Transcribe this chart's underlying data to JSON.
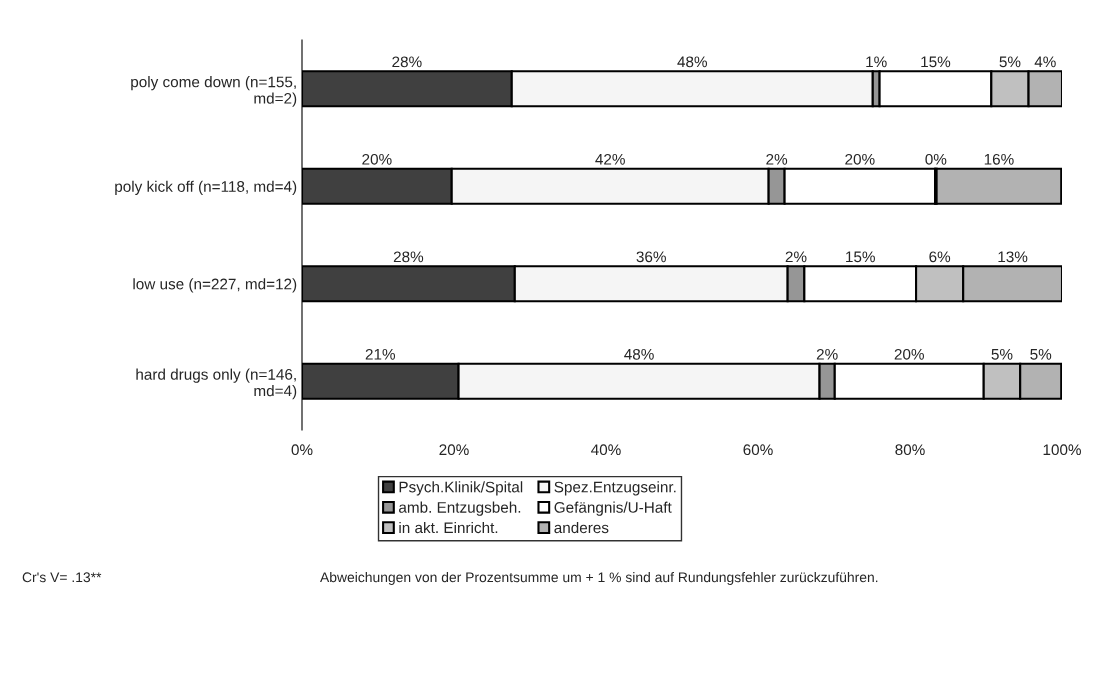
{
  "chart_data": {
    "type": "bar",
    "orientation": "horizontal",
    "stacked": true,
    "categories": [
      "poly come down (n=155,\nmd=2)",
      "poly kick off (n=118, md=4)",
      "low use (n=227, md=12)",
      "hard drugs only (n=146,\nmd=4)"
    ],
    "series": [
      {
        "name": "Psych.Klinik/Spital",
        "color": "#404040",
        "values": [
          27.6,
          19.7,
          28.0,
          20.6
        ],
        "value_labels": [
          "28%",
          "20%",
          "28%",
          "21%"
        ]
      },
      {
        "name": "Spez.Entzugseinr.",
        "color": "#f5f5f5",
        "values": [
          47.5,
          41.7,
          35.9,
          47.5
        ],
        "value_labels": [
          "48%",
          "42%",
          "36%",
          "48%"
        ]
      },
      {
        "name": "amb. Entzugsbeh.",
        "color": "#969696",
        "values": [
          0.9,
          2.1,
          2.2,
          2.0
        ],
        "value_labels": [
          "1%",
          "2%",
          "2%",
          "2%"
        ]
      },
      {
        "name": "Gefängnis/U-Haft",
        "color": "#ffffff",
        "values": [
          14.7,
          19.8,
          14.7,
          19.6
        ],
        "value_labels": [
          "15%",
          "20%",
          "15%",
          "20%"
        ]
      },
      {
        "name": "in akt. Einricht.",
        "color": "#c0c0c0",
        "values": [
          4.9,
          0.2,
          6.2,
          4.8
        ],
        "value_labels": [
          "5%",
          "0%",
          "6%",
          "5%"
        ]
      },
      {
        "name": "anderes",
        "color": "#b2b2b2",
        "values": [
          4.4,
          16.4,
          13.0,
          5.4
        ],
        "value_labels": [
          "4%",
          "16%",
          "13%",
          "5%"
        ]
      }
    ],
    "xlim": [
      0,
      100
    ],
    "xticks": [
      {
        "value": 0,
        "label": "0%"
      },
      {
        "value": 20,
        "label": "20%"
      },
      {
        "value": 40,
        "label": "40%"
      },
      {
        "value": 60,
        "label": "60%"
      },
      {
        "value": 80,
        "label": "80%"
      },
      {
        "value": 100,
        "label": "100%"
      }
    ],
    "legend": "bottom",
    "grid": false,
    "annotations": [
      "Cr's V= .13**",
      "Abweichungen von der Prozentsumme um + 1 % sind auf Rundungsfehler zurückzuführen."
    ]
  }
}
